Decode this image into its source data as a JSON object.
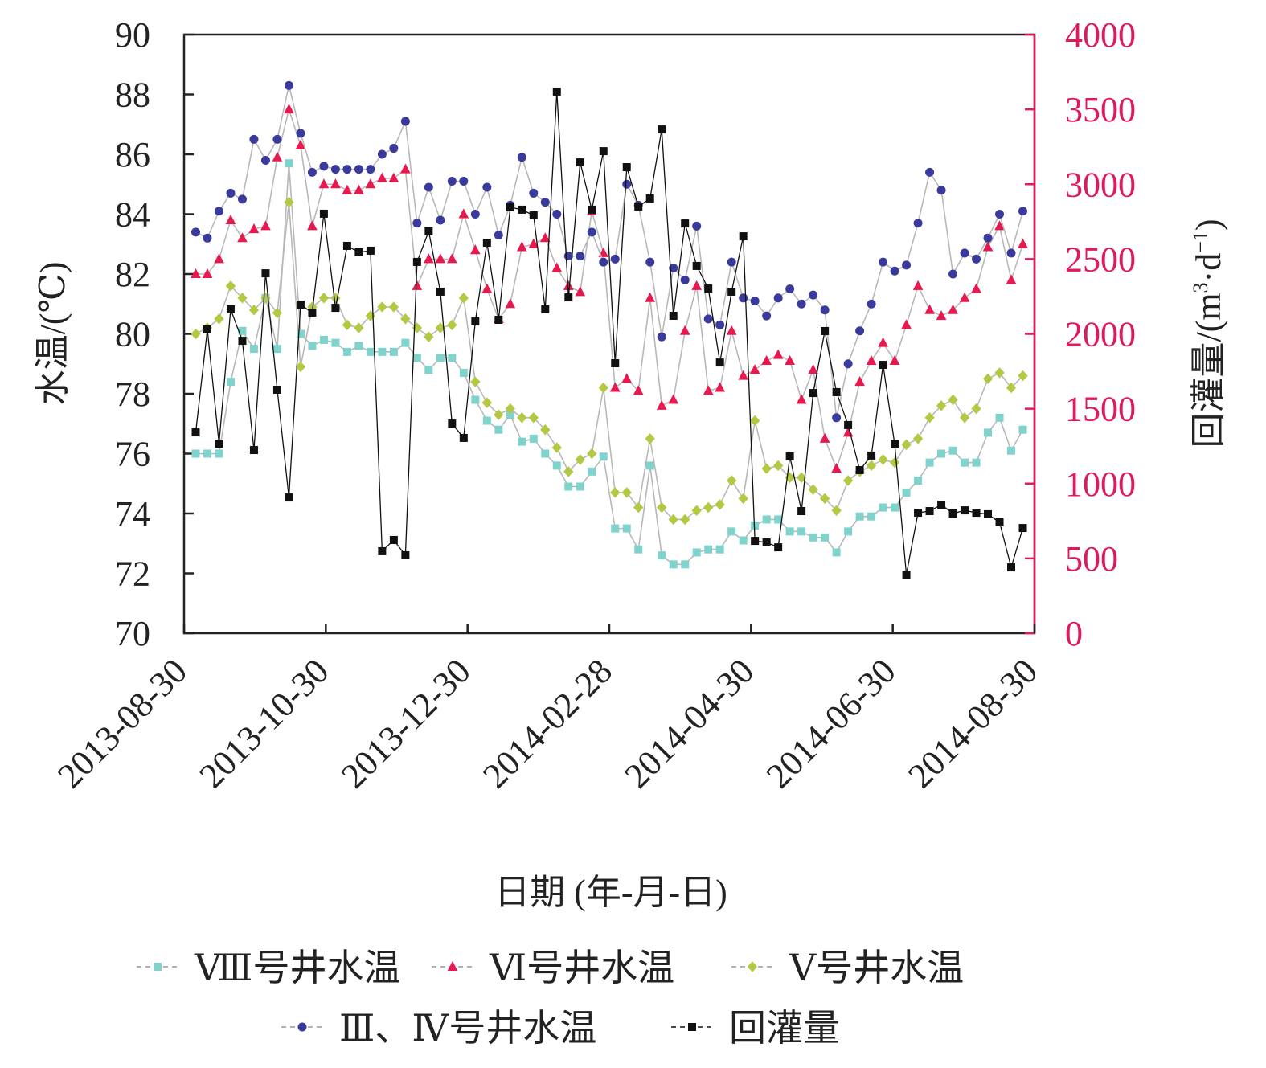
{
  "chart_data": {
    "type": "line",
    "xlabel": "日期 (年-月-日)",
    "ylabel_left": "水温/(℃)",
    "ylabel_right_main": "回灌量/(m",
    "ylabel_right_sup1": "3",
    "ylabel_right_mid": "·d",
    "ylabel_right_sup2": "−1",
    "ylabel_right_end": ")",
    "ylim_left": [
      70,
      90
    ],
    "ylim_right": [
      0,
      4000
    ],
    "left_ticks": [
      "70",
      "72",
      "74",
      "76",
      "78",
      "80",
      "82",
      "84",
      "86",
      "88",
      "90"
    ],
    "right_ticks": [
      "0",
      "500",
      "1000",
      "1500",
      "2000",
      "2500",
      "3000",
      "3500",
      "4000"
    ],
    "x_range_days": [
      0,
      365
    ],
    "x_step_days": 5,
    "x_ticks": [
      "2013-08-30",
      "2013-10-30",
      "2013-12-30",
      "2014-02-28",
      "2014-04-30",
      "2014-06-30",
      "2014-08-30"
    ],
    "grid": false,
    "legend_position": "bottom",
    "series": [
      {
        "name": "Ⅷ号井水温",
        "axis": "left",
        "color": "#7fd3cc",
        "marker": "square",
        "values": [
          76.0,
          76.0,
          76.0,
          78.4,
          80.1,
          79.5,
          81.2,
          79.5,
          85.7,
          80.0,
          79.6,
          79.8,
          79.7,
          79.4,
          79.6,
          79.4,
          79.4,
          79.4,
          79.7,
          79.2,
          78.8,
          79.2,
          79.2,
          78.7,
          77.8,
          77.1,
          76.8,
          77.3,
          76.4,
          76.5,
          76.0,
          75.6,
          74.9,
          74.9,
          75.4,
          75.9,
          73.5,
          73.5,
          72.8,
          75.6,
          72.6,
          72.3,
          72.3,
          72.7,
          72.8,
          72.8,
          73.4,
          73.1,
          73.6,
          73.8,
          73.8,
          73.4,
          73.4,
          73.2,
          73.2,
          72.7,
          73.4,
          73.9,
          73.9,
          74.2,
          74.2,
          74.7,
          75.1,
          75.7,
          76.0,
          76.1,
          75.7,
          75.7,
          76.7,
          77.2,
          76.1,
          76.8
        ]
      },
      {
        "name": "Ⅵ号井水温",
        "axis": "left",
        "color": "#e8194f",
        "marker": "triangle",
        "values": [
          82.0,
          82.0,
          82.5,
          83.8,
          83.2,
          83.5,
          83.6,
          85.9,
          87.5,
          86.3,
          83.6,
          85.0,
          85.0,
          84.8,
          84.8,
          85.0,
          85.2,
          85.2,
          85.5,
          81.6,
          82.5,
          82.5,
          82.5,
          84.0,
          82.8,
          81.5,
          80.5,
          81.0,
          82.9,
          83.0,
          83.2,
          82.2,
          81.6,
          81.4,
          84.1,
          82.7,
          78.2,
          78.5,
          78.1,
          81.2,
          77.6,
          77.8,
          80.1,
          81.6,
          78.1,
          78.2,
          80.1,
          78.6,
          78.8,
          79.1,
          79.3,
          79.1,
          77.8,
          78.8,
          76.5,
          75.5,
          76.7,
          78.4,
          79.1,
          79.7,
          79.1,
          80.3,
          81.6,
          80.8,
          80.6,
          80.8,
          81.2,
          81.5,
          82.9,
          83.6,
          81.8,
          83.0
        ]
      },
      {
        "name": "Ⅴ号井水温",
        "axis": "left",
        "color": "#b5c843",
        "marker": "diamond",
        "values": [
          80.0,
          80.2,
          80.5,
          81.6,
          81.2,
          80.8,
          81.2,
          80.7,
          84.4,
          78.9,
          80.9,
          81.2,
          81.2,
          80.3,
          80.2,
          80.6,
          80.9,
          80.9,
          80.5,
          80.2,
          79.9,
          80.2,
          80.3,
          81.2,
          78.4,
          77.7,
          77.3,
          77.5,
          77.2,
          77.2,
          76.8,
          76.2,
          75.4,
          75.8,
          76.0,
          78.2,
          74.7,
          74.7,
          74.2,
          76.5,
          74.2,
          73.8,
          73.8,
          74.1,
          74.2,
          74.3,
          75.1,
          74.5,
          77.1,
          75.5,
          75.6,
          75.2,
          75.2,
          74.8,
          74.5,
          74.1,
          75.1,
          75.4,
          75.6,
          75.8,
          75.7,
          76.3,
          76.5,
          77.2,
          77.6,
          77.8,
          77.2,
          77.5,
          78.5,
          78.7,
          78.2,
          78.6
        ]
      },
      {
        "name": "Ⅲ、Ⅳ号井水温",
        "axis": "left",
        "color": "#3a3a9c",
        "marker": "circle",
        "values": [
          83.4,
          83.2,
          84.1,
          84.7,
          84.5,
          86.5,
          85.8,
          86.5,
          88.3,
          86.7,
          85.4,
          85.6,
          85.5,
          85.5,
          85.5,
          85.5,
          86.0,
          86.2,
          87.1,
          83.7,
          84.9,
          83.8,
          85.1,
          85.1,
          84.0,
          84.9,
          83.3,
          84.3,
          85.9,
          84.7,
          84.4,
          84.0,
          82.6,
          82.6,
          83.4,
          82.4,
          82.5,
          85.0,
          84.3,
          82.4,
          79.9,
          82.2,
          81.8,
          83.6,
          80.5,
          80.3,
          82.4,
          81.2,
          81.1,
          80.6,
          81.2,
          81.5,
          81.0,
          81.3,
          80.8,
          77.2,
          79.0,
          80.1,
          81.0,
          82.4,
          82.1,
          82.3,
          83.7,
          85.4,
          84.8,
          82.0,
          82.7,
          82.5,
          83.2,
          84.0,
          82.7,
          84.1
        ]
      },
      {
        "name": "回灌量",
        "axis": "right",
        "color": "#111111",
        "marker": "square",
        "values": [
          1342,
          2030,
          1267,
          2164,
          1954,
          1224,
          2405,
          1627,
          907,
          2196,
          2142,
          2803,
          2174,
          2588,
          2545,
          2556,
          548,
          623,
          521,
          2481,
          2685,
          2282,
          1401,
          1305,
          2083,
          2609,
          2094,
          2846,
          2830,
          2792,
          2164,
          3619,
          2244,
          3146,
          2830,
          3221,
          1804,
          3114,
          2851,
          2905,
          3366,
          2121,
          2738,
          2454,
          2303,
          1809,
          2282,
          2652,
          617,
          607,
          574,
          1181,
          816,
          1605,
          2019,
          1611,
          1391,
          1090,
          1187,
          1793,
          1262,
          392,
          805,
          816,
          859,
          800,
          821,
          805,
          795,
          741,
          440,
          703
        ]
      }
    ]
  }
}
